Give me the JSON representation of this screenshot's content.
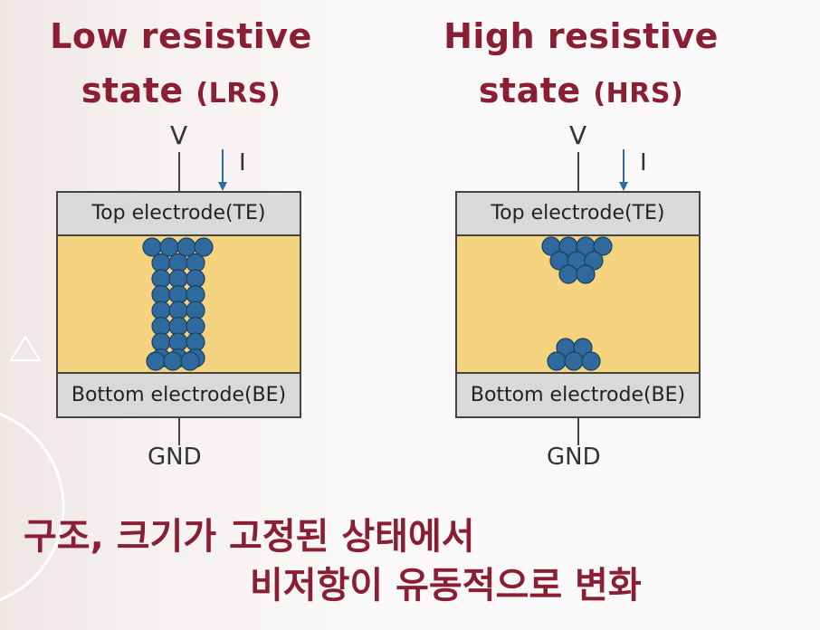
{
  "diagram": {
    "lrs": {
      "title_main": "Low resistive",
      "title_line2": "state",
      "title_abbr": "(LRS)",
      "voltage_label": "V",
      "current_label": "I",
      "top_electrode": "Top electrode(TE)",
      "bottom_electrode": "Bottom electrode(BE)",
      "ground_label": "GND",
      "filament": "connected"
    },
    "hrs": {
      "title_main": "High resistive",
      "title_line2": "state",
      "title_abbr": "(HRS)",
      "voltage_label": "V",
      "current_label": "I",
      "top_electrode": "Top electrode(TE)",
      "bottom_electrode": "Bottom electrode(BE)",
      "ground_label": "GND",
      "filament": "ruptured"
    },
    "caption": {
      "line1": "구조, 크기가 고정된 상태에서",
      "line2": "비저항이 유동적으로 변화"
    },
    "colors": {
      "title": "#8a1f33",
      "switching_layer": "#f6d37f",
      "electrode": "#d9d9d9",
      "atom": "#2f6a9e",
      "current_arrow": "#2f6a9e"
    }
  }
}
